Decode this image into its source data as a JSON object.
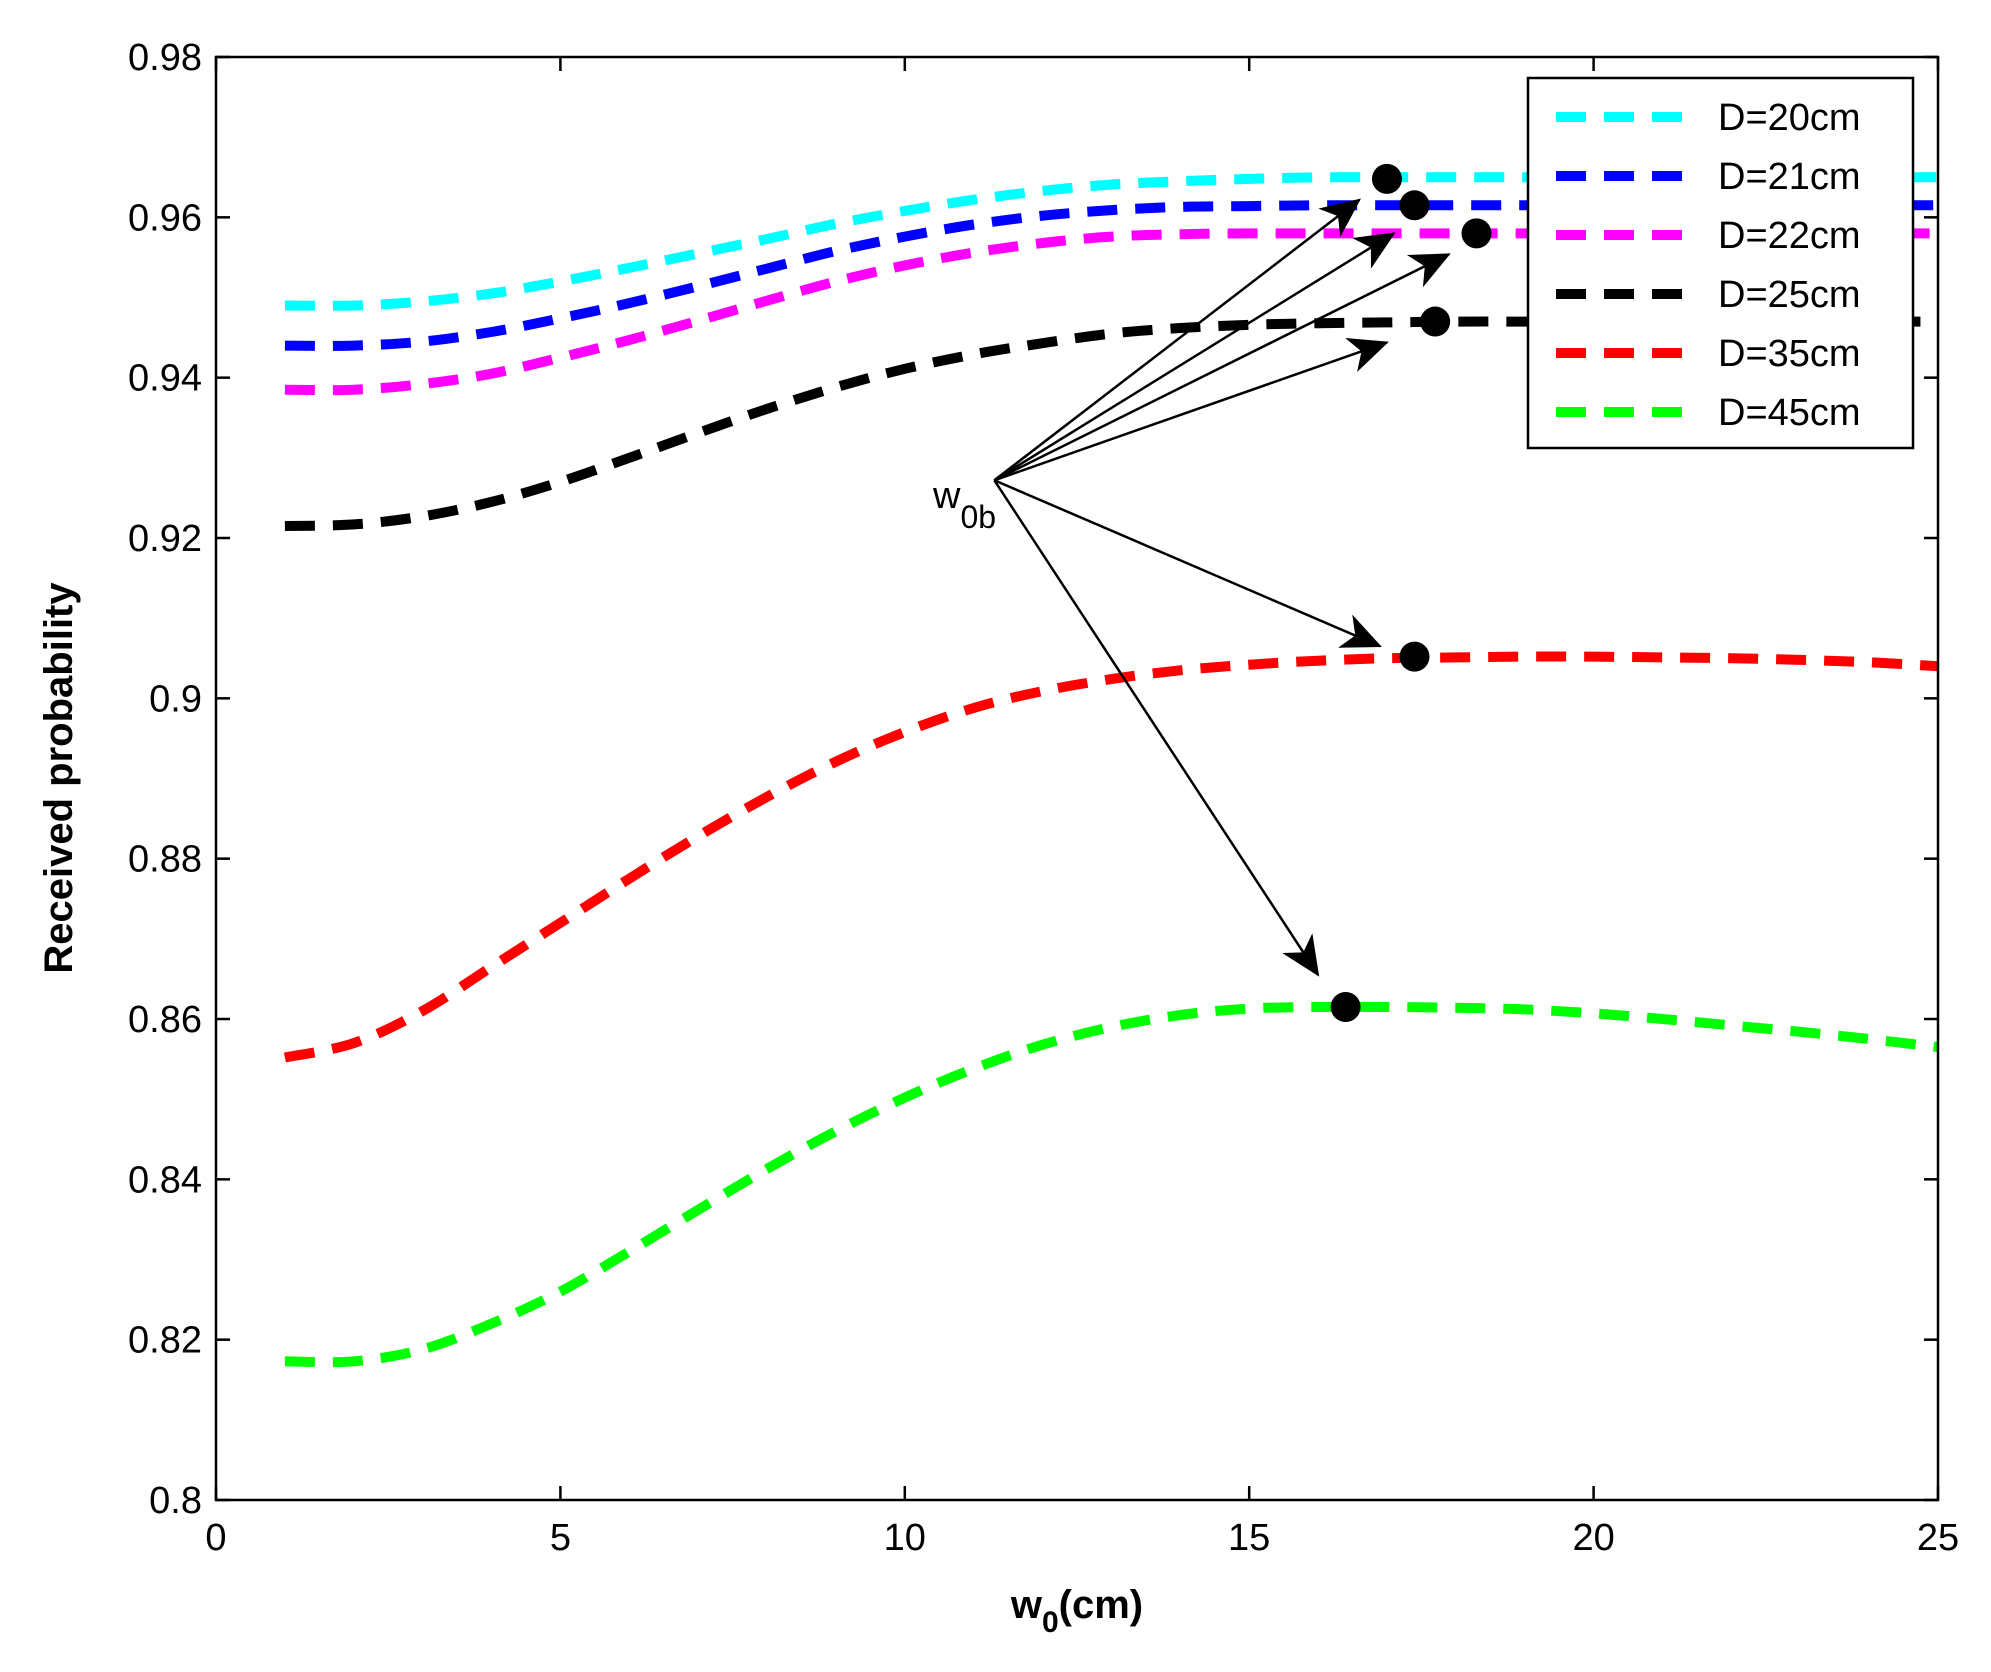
{
  "chart_data": {
    "type": "line",
    "title": "",
    "xlabel": "w",
    "xlabel_sub": "0",
    "xlabel_suffix": "(cm)",
    "ylabel": "Received probability",
    "xlim": [
      0,
      25
    ],
    "ylim": [
      0.8,
      0.98
    ],
    "xticks": [
      0,
      5,
      10,
      15,
      20,
      25
    ],
    "xtick_labels": [
      "0",
      "5",
      "10",
      "15",
      "20",
      "25"
    ],
    "yticks": [
      0.8,
      0.82,
      0.84,
      0.86,
      0.88,
      0.9,
      0.92,
      0.94,
      0.96,
      0.98
    ],
    "ytick_labels": [
      "0.8",
      "0.82",
      "0.84",
      "0.86",
      "0.88",
      "0.9",
      "0.92",
      "0.94",
      "0.96",
      "0.98"
    ],
    "grid": false,
    "legend_position": "top-right",
    "x": [
      1,
      2,
      3,
      4,
      5,
      6,
      7,
      8,
      9,
      10,
      11,
      12,
      13,
      14,
      15,
      16,
      17,
      18,
      19,
      20,
      21,
      22,
      23,
      24,
      25
    ],
    "series": [
      {
        "name": "D=20cm",
        "color": "#00ffff",
        "values": [
          0.949,
          0.949,
          0.9495,
          0.9505,
          0.952,
          0.9537,
          0.9555,
          0.9573,
          0.9592,
          0.9608,
          0.9622,
          0.9633,
          0.9641,
          0.9645,
          0.9648,
          0.965,
          0.965,
          0.965,
          0.965,
          0.965,
          0.965,
          0.965,
          0.965,
          0.965,
          0.965
        ]
      },
      {
        "name": "D=21cm",
        "color": "#0000ff",
        "values": [
          0.944,
          0.944,
          0.9445,
          0.9457,
          0.9474,
          0.9493,
          0.9514,
          0.9536,
          0.9558,
          0.9576,
          0.9591,
          0.9602,
          0.9609,
          0.9613,
          0.9614,
          0.9615,
          0.9615,
          0.9615,
          0.9615,
          0.9615,
          0.9615,
          0.9615,
          0.9615,
          0.9615,
          0.9615
        ]
      },
      {
        "name": "D=22cm",
        "color": "#ff00ff",
        "values": [
          0.9385,
          0.9385,
          0.9392,
          0.9405,
          0.9425,
          0.9447,
          0.9471,
          0.9496,
          0.952,
          0.954,
          0.9556,
          0.9568,
          0.9576,
          0.9579,
          0.958,
          0.958,
          0.958,
          0.958,
          0.958,
          0.958,
          0.958,
          0.958,
          0.958,
          0.958,
          0.958
        ]
      },
      {
        "name": "D=25cm",
        "color": "#000000",
        "values": [
          0.9215,
          0.9217,
          0.9227,
          0.9245,
          0.927,
          0.93,
          0.9331,
          0.9361,
          0.9388,
          0.9411,
          0.9429,
          0.9443,
          0.9455,
          0.9462,
          0.9466,
          0.9468,
          0.9469,
          0.947,
          0.947,
          0.947,
          0.947,
          0.947,
          0.947,
          0.947,
          0.947
        ]
      },
      {
        "name": "D=35cm",
        "color": "#ff0000",
        "values": [
          0.8552,
          0.857,
          0.861,
          0.8665,
          0.872,
          0.8775,
          0.8828,
          0.8877,
          0.8921,
          0.8958,
          0.8988,
          0.9009,
          0.9024,
          0.9035,
          0.9042,
          0.9047,
          0.905,
          0.9051,
          0.9052,
          0.9052,
          0.9051,
          0.905,
          0.9048,
          0.9045,
          0.904
        ]
      },
      {
        "name": "D=45cm",
        "color": "#00ff00",
        "values": [
          0.8173,
          0.8173,
          0.8188,
          0.822,
          0.826,
          0.831,
          0.8362,
          0.8413,
          0.846,
          0.8502,
          0.8538,
          0.8568,
          0.859,
          0.8605,
          0.8613,
          0.8615,
          0.8615,
          0.8614,
          0.8612,
          0.8607,
          0.86,
          0.8592,
          0.8584,
          0.8575,
          0.8565
        ]
      }
    ],
    "optimal_points": [
      {
        "x": 17.0,
        "y": 0.9648
      },
      {
        "x": 17.4,
        "y": 0.9615
      },
      {
        "x": 18.3,
        "y": 0.958
      },
      {
        "x": 17.7,
        "y": 0.947
      },
      {
        "x": 17.4,
        "y": 0.9052
      },
      {
        "x": 16.4,
        "y": 0.8615
      }
    ],
    "annotation": {
      "label": "w",
      "label_sub": "0b",
      "origin": {
        "x": 11.3,
        "y": 0.9272
      },
      "arrow_tips": [
        {
          "x": 16.6,
          "y": 0.9622
        },
        {
          "x": 17.1,
          "y": 0.958
        },
        {
          "x": 17.9,
          "y": 0.9554
        },
        {
          "x": 17.0,
          "y": 0.9444
        },
        {
          "x": 16.9,
          "y": 0.9065
        },
        {
          "x": 16.0,
          "y": 0.8655
        }
      ]
    }
  }
}
